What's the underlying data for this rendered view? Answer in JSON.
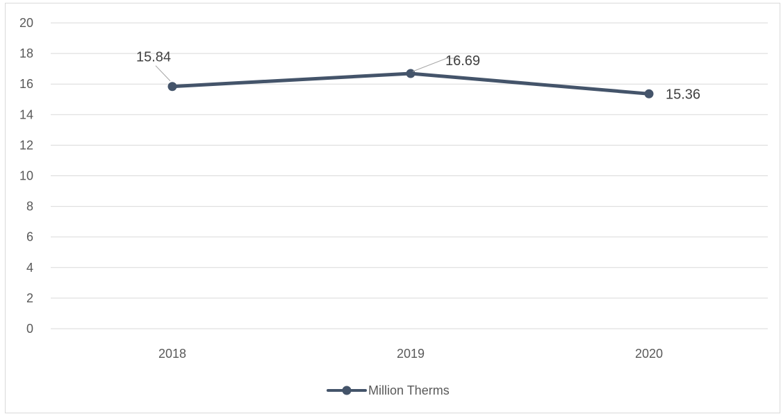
{
  "chart_data": {
    "type": "line",
    "title": "",
    "xlabel": "",
    "ylabel": "",
    "categories": [
      "2018",
      "2019",
      "2020"
    ],
    "series": [
      {
        "name": "Million Therms",
        "values": [
          15.84,
          16.69,
          15.36
        ],
        "data_labels": [
          "15.84",
          "16.69",
          "15.36"
        ],
        "color": "#44546a"
      }
    ],
    "ylim": [
      0,
      20
    ],
    "yticks": [
      "0",
      "2",
      "4",
      "6",
      "8",
      "10",
      "12",
      "14",
      "16",
      "18",
      "20"
    ],
    "grid": true,
    "legend_position": "bottom"
  },
  "colors": {
    "series_line": "#44546a",
    "gridline": "#d9d9d9",
    "axis_text": "#595959",
    "label_text": "#404040",
    "leader_line": "#a6a6a6"
  }
}
